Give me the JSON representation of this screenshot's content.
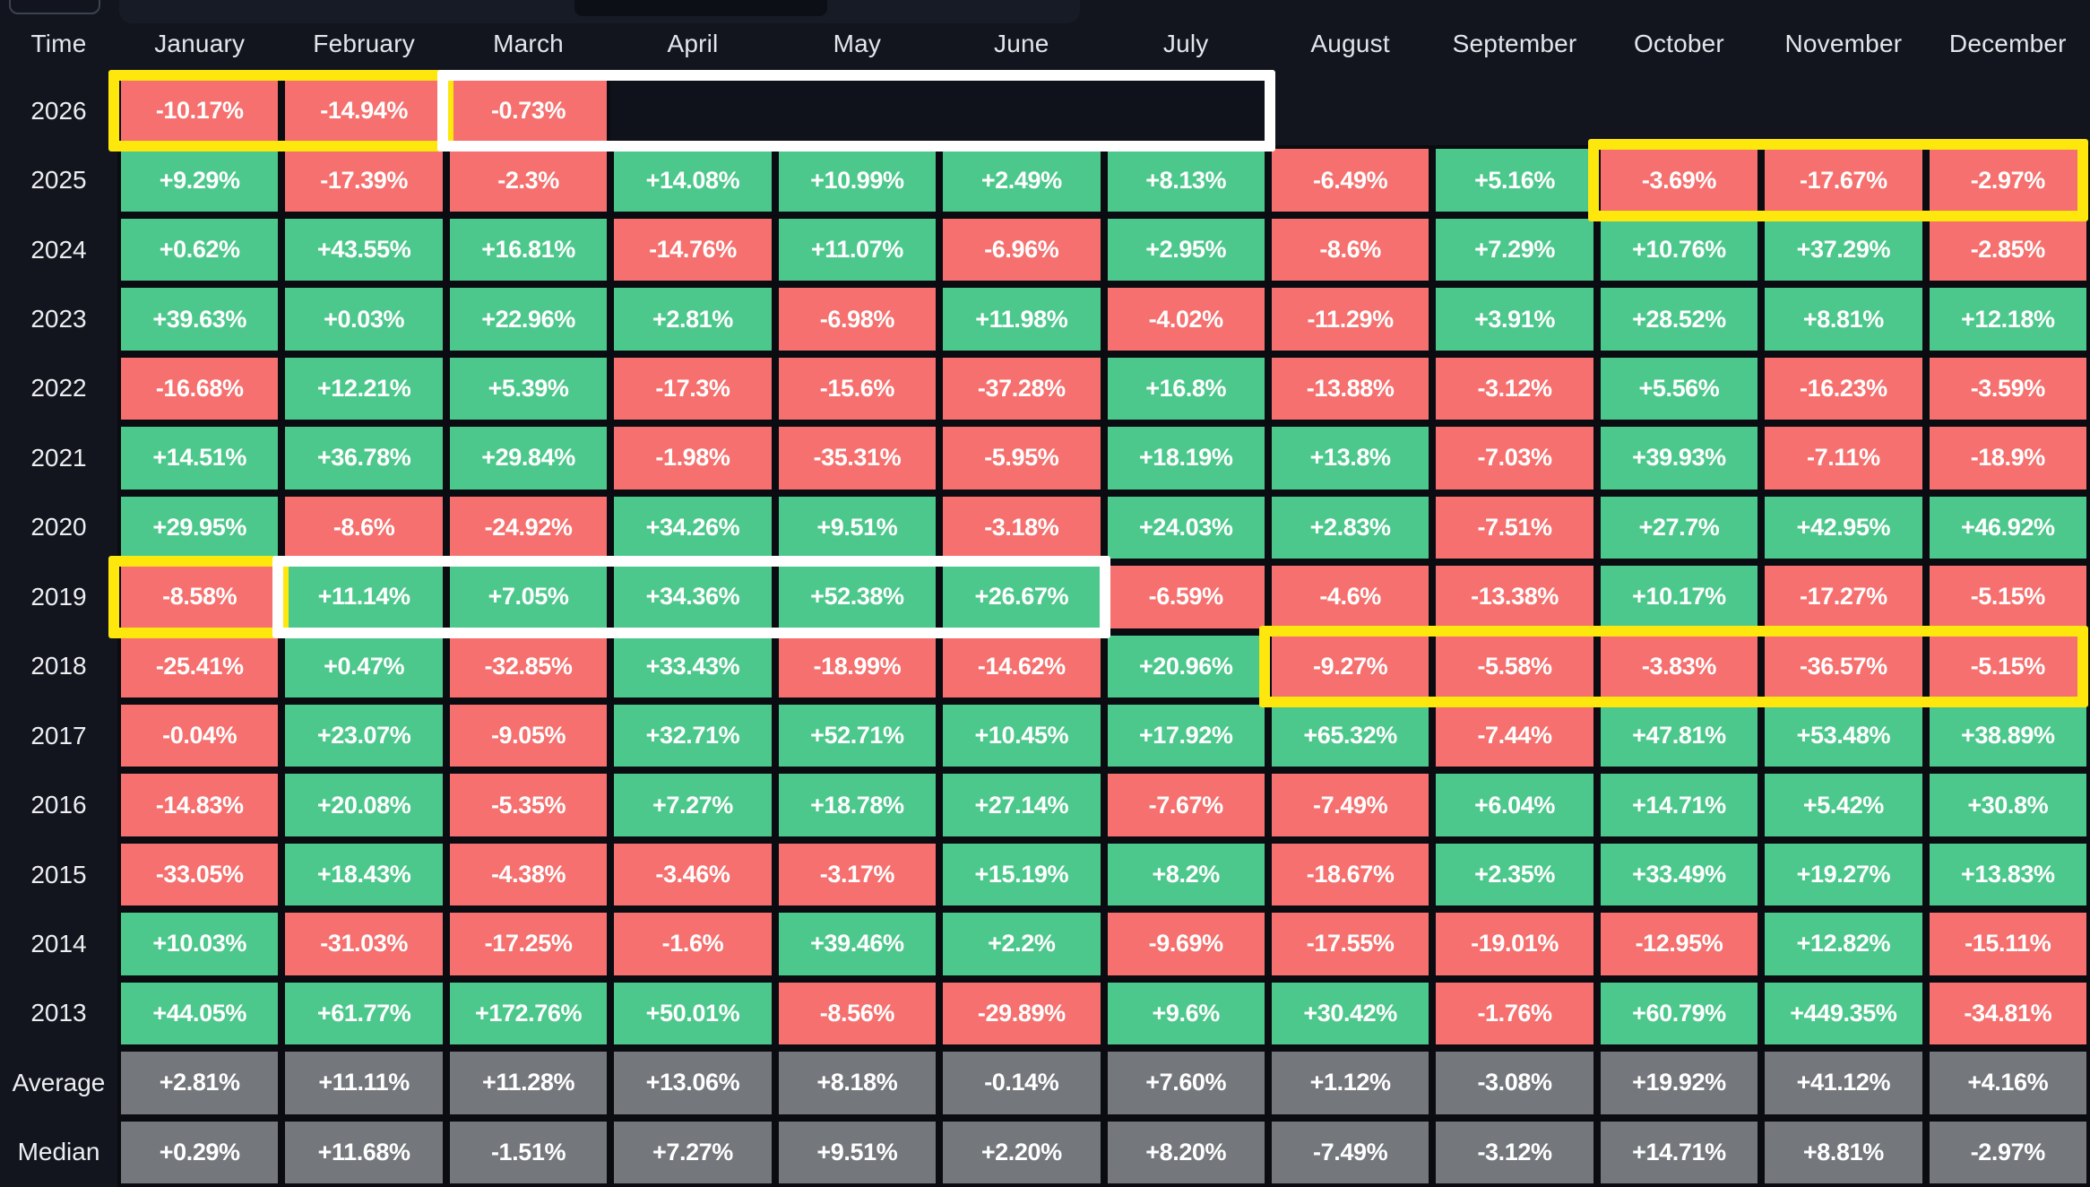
{
  "chart_data": {
    "type": "heatmap",
    "corner_label": "Time",
    "columns": [
      "January",
      "February",
      "March",
      "April",
      "May",
      "June",
      "July",
      "August",
      "September",
      "October",
      "November",
      "December"
    ],
    "rows": [
      {
        "label": "2026",
        "kind": "year",
        "values": [
          "-10.17%",
          "-14.94%",
          "-0.73%",
          null,
          null,
          null,
          null,
          null,
          null,
          null,
          null,
          null
        ]
      },
      {
        "label": "2025",
        "kind": "year",
        "values": [
          "+9.29%",
          "-17.39%",
          "-2.3%",
          "+14.08%",
          "+10.99%",
          "+2.49%",
          "+8.13%",
          "-6.49%",
          "+5.16%",
          "-3.69%",
          "-17.67%",
          "-2.97%"
        ]
      },
      {
        "label": "2024",
        "kind": "year",
        "values": [
          "+0.62%",
          "+43.55%",
          "+16.81%",
          "-14.76%",
          "+11.07%",
          "-6.96%",
          "+2.95%",
          "-8.6%",
          "+7.29%",
          "+10.76%",
          "+37.29%",
          "-2.85%"
        ]
      },
      {
        "label": "2023",
        "kind": "year",
        "values": [
          "+39.63%",
          "+0.03%",
          "+22.96%",
          "+2.81%",
          "-6.98%",
          "+11.98%",
          "-4.02%",
          "-11.29%",
          "+3.91%",
          "+28.52%",
          "+8.81%",
          "+12.18%"
        ]
      },
      {
        "label": "2022",
        "kind": "year",
        "values": [
          "-16.68%",
          "+12.21%",
          "+5.39%",
          "-17.3%",
          "-15.6%",
          "-37.28%",
          "+16.8%",
          "-13.88%",
          "-3.12%",
          "+5.56%",
          "-16.23%",
          "-3.59%"
        ]
      },
      {
        "label": "2021",
        "kind": "year",
        "values": [
          "+14.51%",
          "+36.78%",
          "+29.84%",
          "-1.98%",
          "-35.31%",
          "-5.95%",
          "+18.19%",
          "+13.8%",
          "-7.03%",
          "+39.93%",
          "-7.11%",
          "-18.9%"
        ]
      },
      {
        "label": "2020",
        "kind": "year",
        "values": [
          "+29.95%",
          "-8.6%",
          "-24.92%",
          "+34.26%",
          "+9.51%",
          "-3.18%",
          "+24.03%",
          "+2.83%",
          "-7.51%",
          "+27.7%",
          "+42.95%",
          "+46.92%"
        ]
      },
      {
        "label": "2019",
        "kind": "year",
        "values": [
          "-8.58%",
          "+11.14%",
          "+7.05%",
          "+34.36%",
          "+52.38%",
          "+26.67%",
          "-6.59%",
          "-4.6%",
          "-13.38%",
          "+10.17%",
          "-17.27%",
          "-5.15%"
        ]
      },
      {
        "label": "2018",
        "kind": "year",
        "values": [
          "-25.41%",
          "+0.47%",
          "-32.85%",
          "+33.43%",
          "-18.99%",
          "-14.62%",
          "+20.96%",
          "-9.27%",
          "-5.58%",
          "-3.83%",
          "-36.57%",
          "-5.15%"
        ]
      },
      {
        "label": "2017",
        "kind": "year",
        "values": [
          "-0.04%",
          "+23.07%",
          "-9.05%",
          "+32.71%",
          "+52.71%",
          "+10.45%",
          "+17.92%",
          "+65.32%",
          "-7.44%",
          "+47.81%",
          "+53.48%",
          "+38.89%"
        ]
      },
      {
        "label": "2016",
        "kind": "year",
        "values": [
          "-14.83%",
          "+20.08%",
          "-5.35%",
          "+7.27%",
          "+18.78%",
          "+27.14%",
          "-7.67%",
          "-7.49%",
          "+6.04%",
          "+14.71%",
          "+5.42%",
          "+30.8%"
        ]
      },
      {
        "label": "2015",
        "kind": "year",
        "values": [
          "-33.05%",
          "+18.43%",
          "-4.38%",
          "-3.46%",
          "-3.17%",
          "+15.19%",
          "+8.2%",
          "-18.67%",
          "+2.35%",
          "+33.49%",
          "+19.27%",
          "+13.83%"
        ]
      },
      {
        "label": "2014",
        "kind": "year",
        "values": [
          "+10.03%",
          "-31.03%",
          "-17.25%",
          "-1.6%",
          "+39.46%",
          "+2.2%",
          "-9.69%",
          "-17.55%",
          "-19.01%",
          "-12.95%",
          "+12.82%",
          "-15.11%"
        ]
      },
      {
        "label": "2013",
        "kind": "year",
        "values": [
          "+44.05%",
          "+61.77%",
          "+172.76%",
          "+50.01%",
          "-8.56%",
          "-29.89%",
          "+9.6%",
          "+30.42%",
          "-1.76%",
          "+60.79%",
          "+449.35%",
          "-34.81%"
        ]
      },
      {
        "label": "Average",
        "kind": "summary",
        "values": [
          "+2.81%",
          "+11.11%",
          "+11.28%",
          "+13.06%",
          "+8.18%",
          "-0.14%",
          "+7.60%",
          "+1.12%",
          "-3.08%",
          "+19.92%",
          "+41.12%",
          "+4.16%"
        ]
      },
      {
        "label": "Median",
        "kind": "summary",
        "values": [
          "+0.29%",
          "+11.68%",
          "-1.51%",
          "+7.27%",
          "+9.51%",
          "+2.20%",
          "+8.20%",
          "-7.49%",
          "-3.12%",
          "+14.71%",
          "+8.81%",
          "-2.97%"
        ]
      }
    ],
    "highlights": [
      {
        "row": "2026",
        "col_start": "January",
        "col_end": "February",
        "color": "yellow"
      },
      {
        "row": "2026",
        "col_start": "March",
        "col_end": "July",
        "color": "white",
        "fill": "#0f121a"
      },
      {
        "row": "2025",
        "col_start": "October",
        "col_end": "December",
        "color": "yellow"
      },
      {
        "row": "2019",
        "col_start": "January",
        "col_end": "January",
        "color": "yellow"
      },
      {
        "row": "2019",
        "col_start": "February",
        "col_end": "June",
        "color": "white"
      },
      {
        "row": "2018",
        "col_start": "August",
        "col_end": "December",
        "color": "yellow"
      }
    ],
    "colors": {
      "positive": "#4dc88c",
      "negative": "#f5706e",
      "summary": "#74777c",
      "highlight_yellow": "#fde70c",
      "highlight_white": "#ffffff",
      "background": "#12151d",
      "cell_border": "#0a0c11"
    },
    "legend_position": "none",
    "grid": true
  }
}
